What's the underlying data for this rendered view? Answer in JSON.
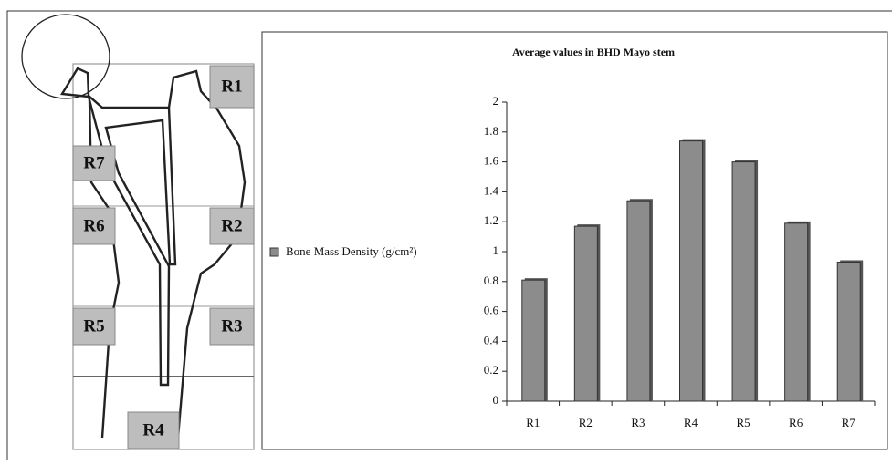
{
  "diagram": {
    "zones": [
      "R1",
      "R2",
      "R3",
      "R4",
      "R5",
      "R6",
      "R7"
    ]
  },
  "chart_data": {
    "type": "bar",
    "title": "Average values in BHD Mayo stem",
    "categories": [
      "R1",
      "R2",
      "R3",
      "R4",
      "R5",
      "R6",
      "R7"
    ],
    "series": [
      {
        "name": "Bone Mass Density (g/cm²)",
        "color": "#8c8c8c",
        "values": [
          0.81,
          1.17,
          1.34,
          1.74,
          1.6,
          1.19,
          0.93
        ]
      }
    ],
    "ylim": [
      0,
      2
    ],
    "yticks": [
      0,
      0.2,
      0.4,
      0.6,
      0.8,
      1,
      1.2,
      1.4,
      1.6,
      1.8,
      2
    ],
    "grid": false,
    "legend": "left"
  }
}
